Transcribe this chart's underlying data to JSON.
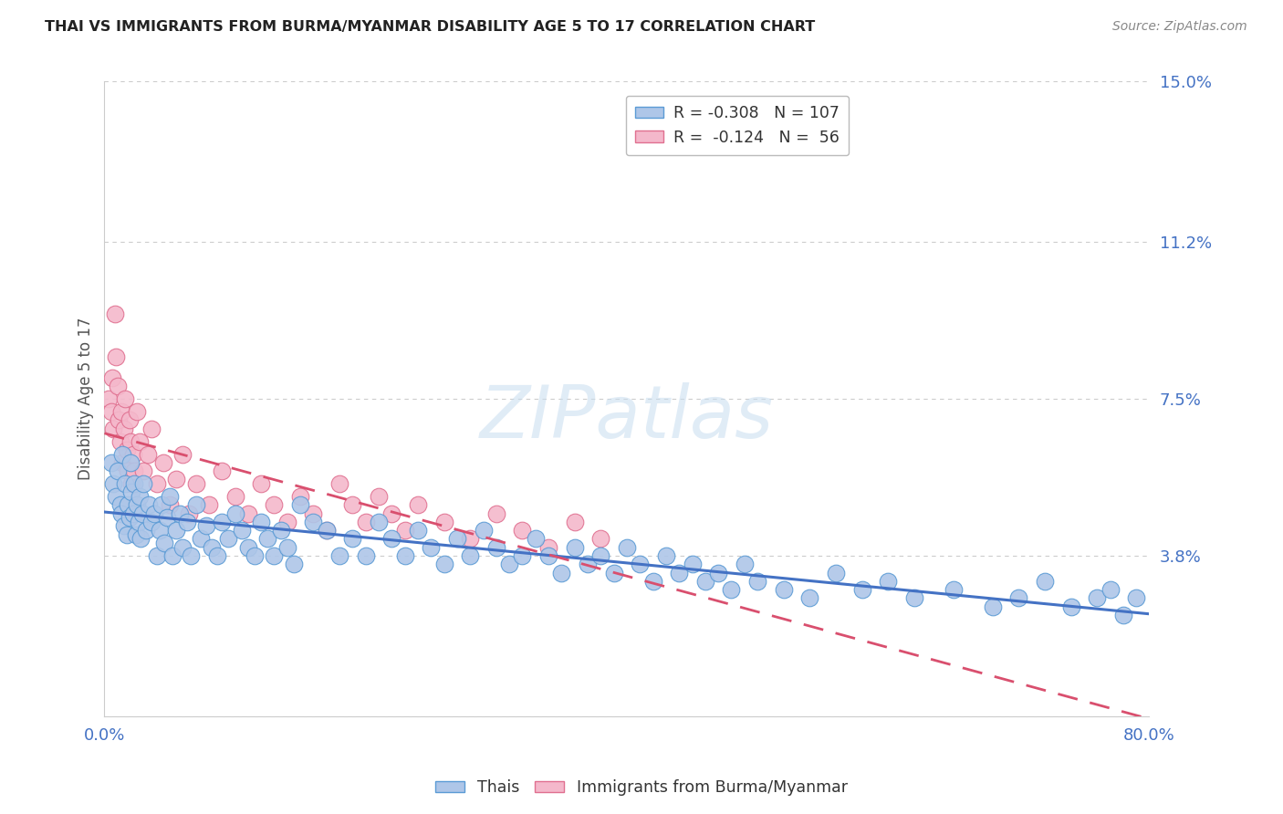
{
  "title": "THAI VS IMMIGRANTS FROM BURMA/MYANMAR DISABILITY AGE 5 TO 17 CORRELATION CHART",
  "source": "Source: ZipAtlas.com",
  "ylabel": "Disability Age 5 to 17",
  "xlim": [
    0.0,
    0.8
  ],
  "ylim": [
    0.0,
    0.15
  ],
  "yticks": [
    0.0,
    0.038,
    0.075,
    0.112,
    0.15
  ],
  "ytick_labels": [
    "",
    "3.8%",
    "7.5%",
    "11.2%",
    "15.0%"
  ],
  "xticks": [
    0.0,
    0.2,
    0.4,
    0.6,
    0.8
  ],
  "xtick_labels": [
    "0.0%",
    "",
    "",
    "",
    "80.0%"
  ],
  "grid_color": "#cccccc",
  "background_color": "#ffffff",
  "thai_color": "#aec6e8",
  "thai_edge_color": "#5b9bd5",
  "burma_color": "#f4b8cb",
  "burma_edge_color": "#e07090",
  "trend_thai_color": "#4472c4",
  "trend_burma_color": "#d94f6e",
  "R_thai": -0.308,
  "N_thai": 107,
  "R_burma": -0.124,
  "N_burma": 56,
  "watermark": "ZIPatlas",
  "legend_label_thai": "Thais",
  "legend_label_burma": "Immigrants from Burma/Myanmar",
  "thai_x": [
    0.005,
    0.007,
    0.009,
    0.01,
    0.012,
    0.013,
    0.014,
    0.015,
    0.016,
    0.017,
    0.018,
    0.019,
    0.02,
    0.021,
    0.022,
    0.023,
    0.024,
    0.025,
    0.026,
    0.027,
    0.028,
    0.029,
    0.03,
    0.032,
    0.034,
    0.036,
    0.038,
    0.04,
    0.042,
    0.044,
    0.046,
    0.048,
    0.05,
    0.052,
    0.055,
    0.058,
    0.06,
    0.063,
    0.066,
    0.07,
    0.074,
    0.078,
    0.082,
    0.086,
    0.09,
    0.095,
    0.1,
    0.105,
    0.11,
    0.115,
    0.12,
    0.125,
    0.13,
    0.135,
    0.14,
    0.145,
    0.15,
    0.16,
    0.17,
    0.18,
    0.19,
    0.2,
    0.21,
    0.22,
    0.23,
    0.24,
    0.25,
    0.26,
    0.27,
    0.28,
    0.29,
    0.3,
    0.31,
    0.32,
    0.33,
    0.34,
    0.35,
    0.36,
    0.37,
    0.38,
    0.39,
    0.4,
    0.41,
    0.42,
    0.43,
    0.44,
    0.45,
    0.46,
    0.47,
    0.48,
    0.49,
    0.5,
    0.52,
    0.54,
    0.56,
    0.58,
    0.6,
    0.62,
    0.65,
    0.68,
    0.7,
    0.72,
    0.74,
    0.76,
    0.77,
    0.78,
    0.79
  ],
  "thai_y": [
    0.06,
    0.055,
    0.052,
    0.058,
    0.05,
    0.048,
    0.062,
    0.045,
    0.055,
    0.043,
    0.05,
    0.047,
    0.06,
    0.053,
    0.048,
    0.055,
    0.043,
    0.05,
    0.046,
    0.052,
    0.042,
    0.048,
    0.055,
    0.044,
    0.05,
    0.046,
    0.048,
    0.038,
    0.044,
    0.05,
    0.041,
    0.047,
    0.052,
    0.038,
    0.044,
    0.048,
    0.04,
    0.046,
    0.038,
    0.05,
    0.042,
    0.045,
    0.04,
    0.038,
    0.046,
    0.042,
    0.048,
    0.044,
    0.04,
    0.038,
    0.046,
    0.042,
    0.038,
    0.044,
    0.04,
    0.036,
    0.05,
    0.046,
    0.044,
    0.038,
    0.042,
    0.038,
    0.046,
    0.042,
    0.038,
    0.044,
    0.04,
    0.036,
    0.042,
    0.038,
    0.044,
    0.04,
    0.036,
    0.038,
    0.042,
    0.038,
    0.034,
    0.04,
    0.036,
    0.038,
    0.034,
    0.04,
    0.036,
    0.032,
    0.038,
    0.034,
    0.036,
    0.032,
    0.034,
    0.03,
    0.036,
    0.032,
    0.03,
    0.028,
    0.034,
    0.03,
    0.032,
    0.028,
    0.03,
    0.026,
    0.028,
    0.032,
    0.026,
    0.028,
    0.03,
    0.024,
    0.028
  ],
  "burma_x": [
    0.003,
    0.005,
    0.006,
    0.007,
    0.008,
    0.009,
    0.01,
    0.011,
    0.012,
    0.013,
    0.014,
    0.015,
    0.016,
    0.017,
    0.018,
    0.019,
    0.02,
    0.021,
    0.022,
    0.023,
    0.025,
    0.027,
    0.03,
    0.033,
    0.036,
    0.04,
    0.045,
    0.05,
    0.055,
    0.06,
    0.065,
    0.07,
    0.08,
    0.09,
    0.1,
    0.11,
    0.12,
    0.13,
    0.14,
    0.15,
    0.16,
    0.17,
    0.18,
    0.19,
    0.2,
    0.21,
    0.22,
    0.23,
    0.24,
    0.26,
    0.28,
    0.3,
    0.32,
    0.34,
    0.36,
    0.38
  ],
  "burma_y": [
    0.075,
    0.072,
    0.08,
    0.068,
    0.095,
    0.085,
    0.078,
    0.07,
    0.065,
    0.072,
    0.06,
    0.068,
    0.075,
    0.063,
    0.058,
    0.07,
    0.065,
    0.055,
    0.062,
    0.058,
    0.072,
    0.065,
    0.058,
    0.062,
    0.068,
    0.055,
    0.06,
    0.05,
    0.056,
    0.062,
    0.048,
    0.055,
    0.05,
    0.058,
    0.052,
    0.048,
    0.055,
    0.05,
    0.046,
    0.052,
    0.048,
    0.044,
    0.055,
    0.05,
    0.046,
    0.052,
    0.048,
    0.044,
    0.05,
    0.046,
    0.042,
    0.048,
    0.044,
    0.04,
    0.046,
    0.042
  ]
}
